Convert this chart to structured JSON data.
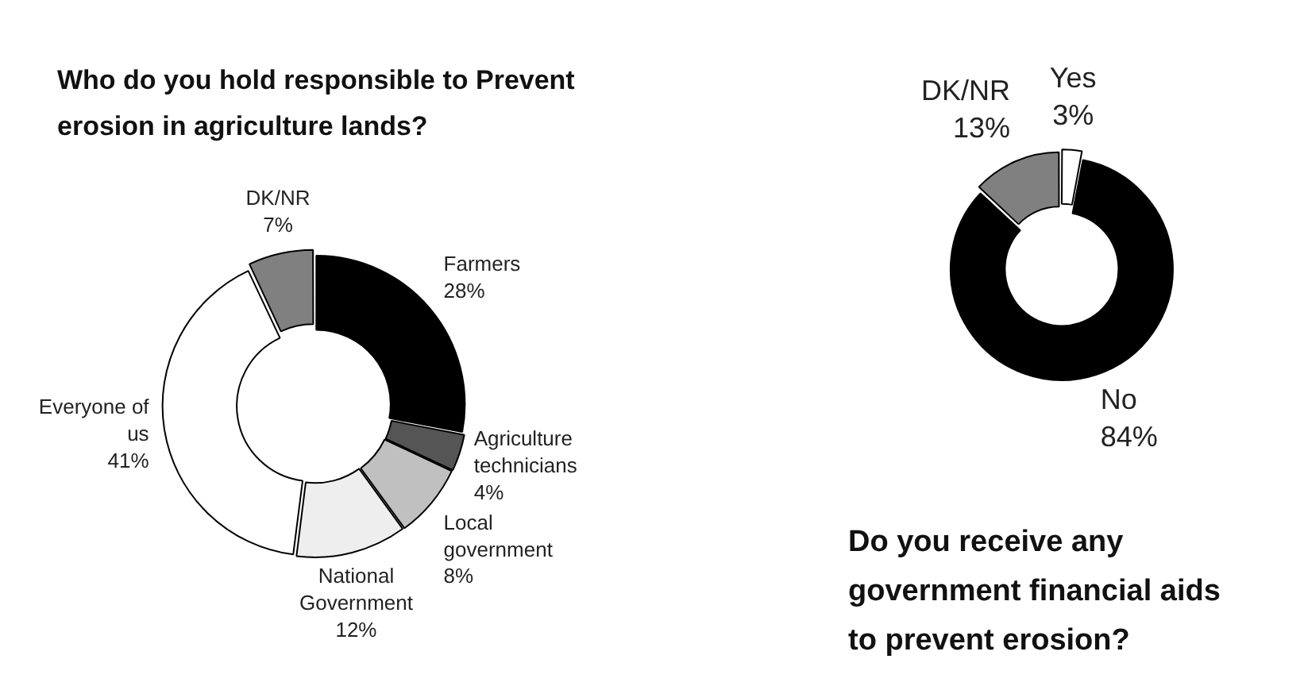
{
  "chart_data": [
    {
      "type": "donut",
      "title": "Who do you hold responsible to Prevent erosion in  agriculture lands?",
      "categories": [
        "Farmers",
        "Agriculture technicians",
        "Local government",
        "National Government",
        "Everyone of us",
        "DK/NR"
      ],
      "values": [
        28,
        4,
        8,
        12,
        41,
        7
      ],
      "colors": [
        "#000000",
        "#555555",
        "#c0c0c0",
        "#eeeeee",
        "#ffffff",
        "#808080"
      ],
      "value_labels": [
        "28%",
        "4%",
        "8%",
        "12%",
        "41%",
        "7%"
      ],
      "legend": false
    },
    {
      "type": "donut",
      "title": "Do you receive any government  financial aids to prevent erosion?",
      "categories": [
        "Yes",
        "No",
        "DK/NR"
      ],
      "values": [
        3,
        84,
        13
      ],
      "colors": [
        "#ffffff",
        "#000000",
        "#808080"
      ],
      "value_labels": [
        "3%",
        "84%",
        "13%"
      ],
      "legend": false
    }
  ]
}
